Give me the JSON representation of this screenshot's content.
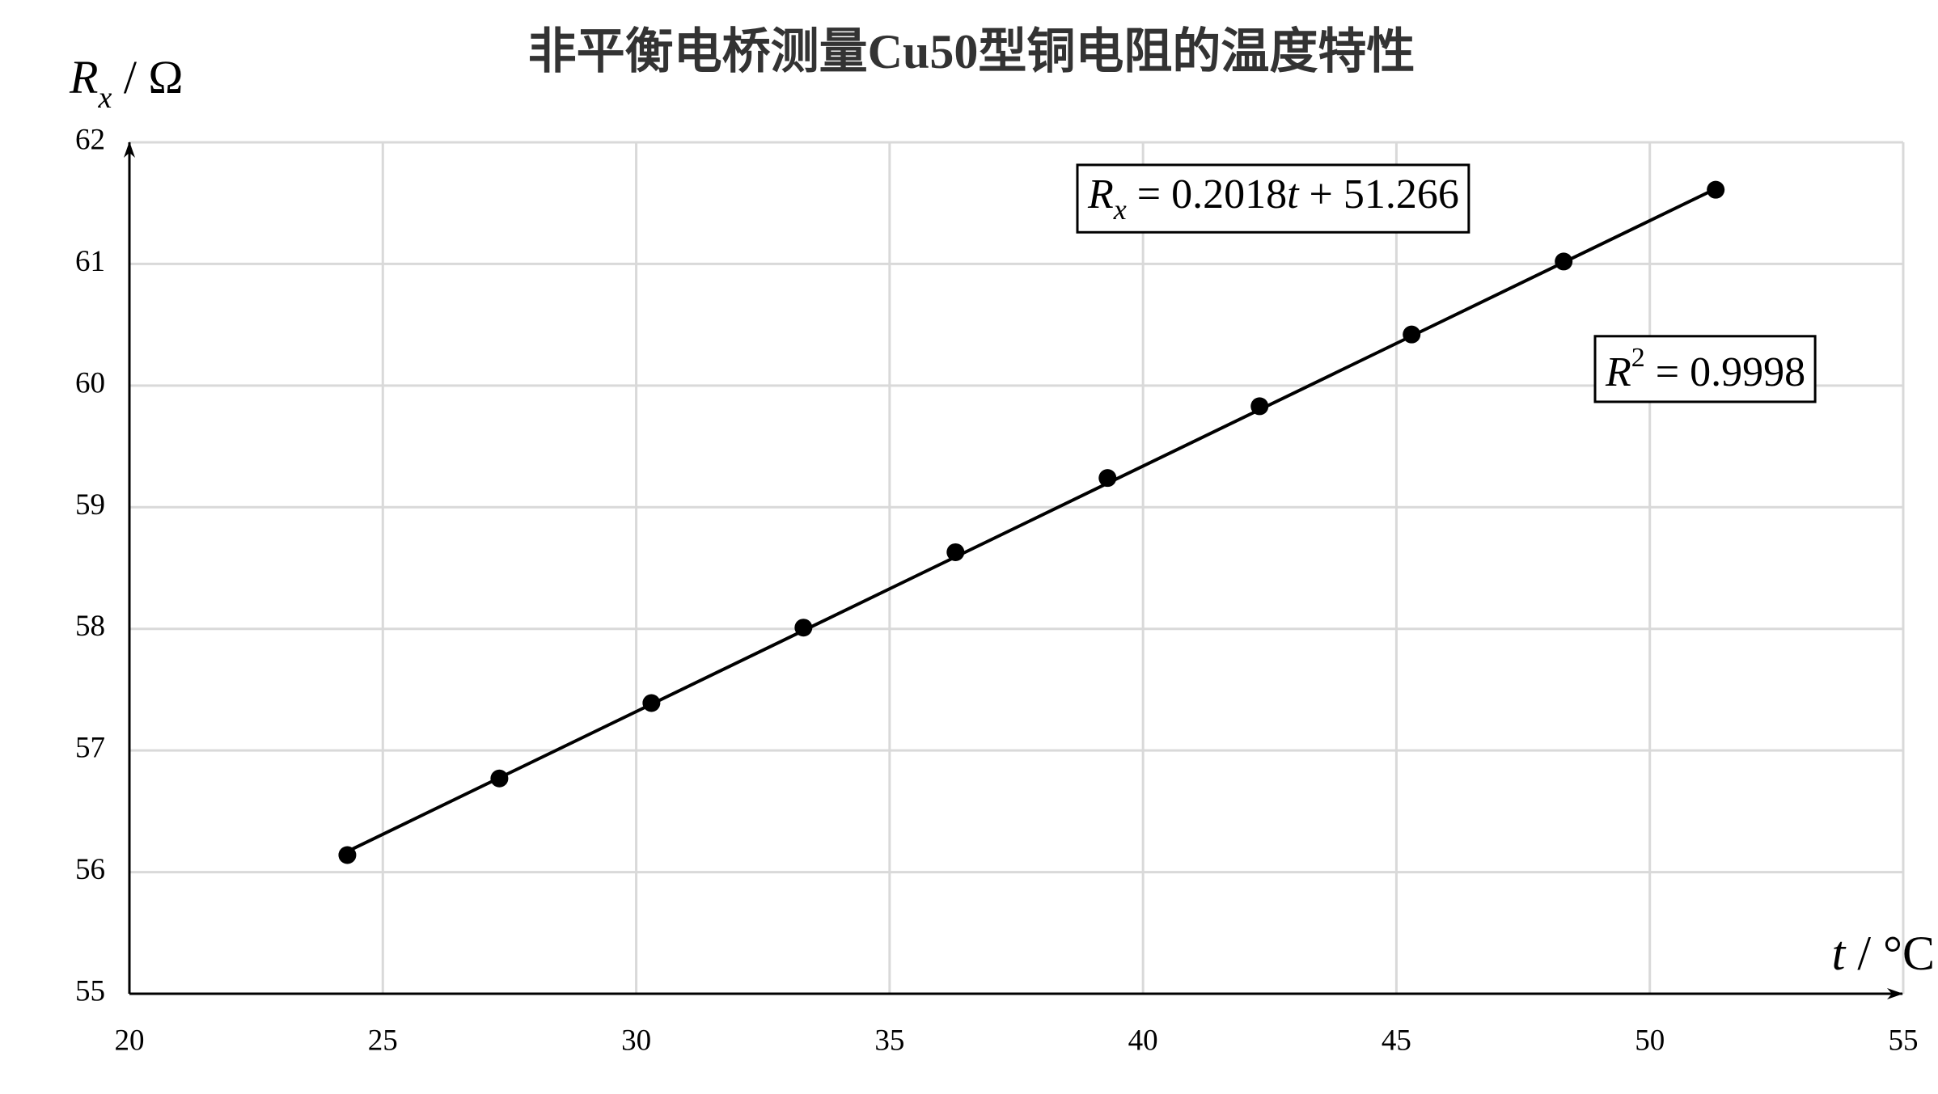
{
  "chart_data": {
    "type": "scatter",
    "title": "非平衡电桥测量Cu50型铜电阻的温度特性",
    "y_label": [
      "R",
      "x",
      " / Ω"
    ],
    "x_label": [
      "t",
      " / °C"
    ],
    "x": [
      24.3,
      27.3,
      30.3,
      33.3,
      36.3,
      39.3,
      42.3,
      45.3,
      48.3,
      51.3
    ],
    "values": [
      56.14,
      56.77,
      57.39,
      58.01,
      58.63,
      59.24,
      59.83,
      60.42,
      61.02,
      61.61
    ],
    "color": "#000000",
    "trendline": {
      "slope": 0.2018,
      "intercept": 51.266
    },
    "equation": [
      "R",
      "x",
      " = 0.2018",
      "t",
      " + 51.266"
    ],
    "r_squared": [
      "R",
      "2",
      " = 0.9998"
    ],
    "xlim": [
      20,
      55
    ],
    "xticks": [
      20,
      25,
      30,
      35,
      40,
      45,
      50,
      55
    ],
    "ylim": [
      55,
      62
    ],
    "yticks": [
      55,
      56,
      57,
      58,
      59,
      60,
      61,
      62
    ],
    "grid": true
  }
}
